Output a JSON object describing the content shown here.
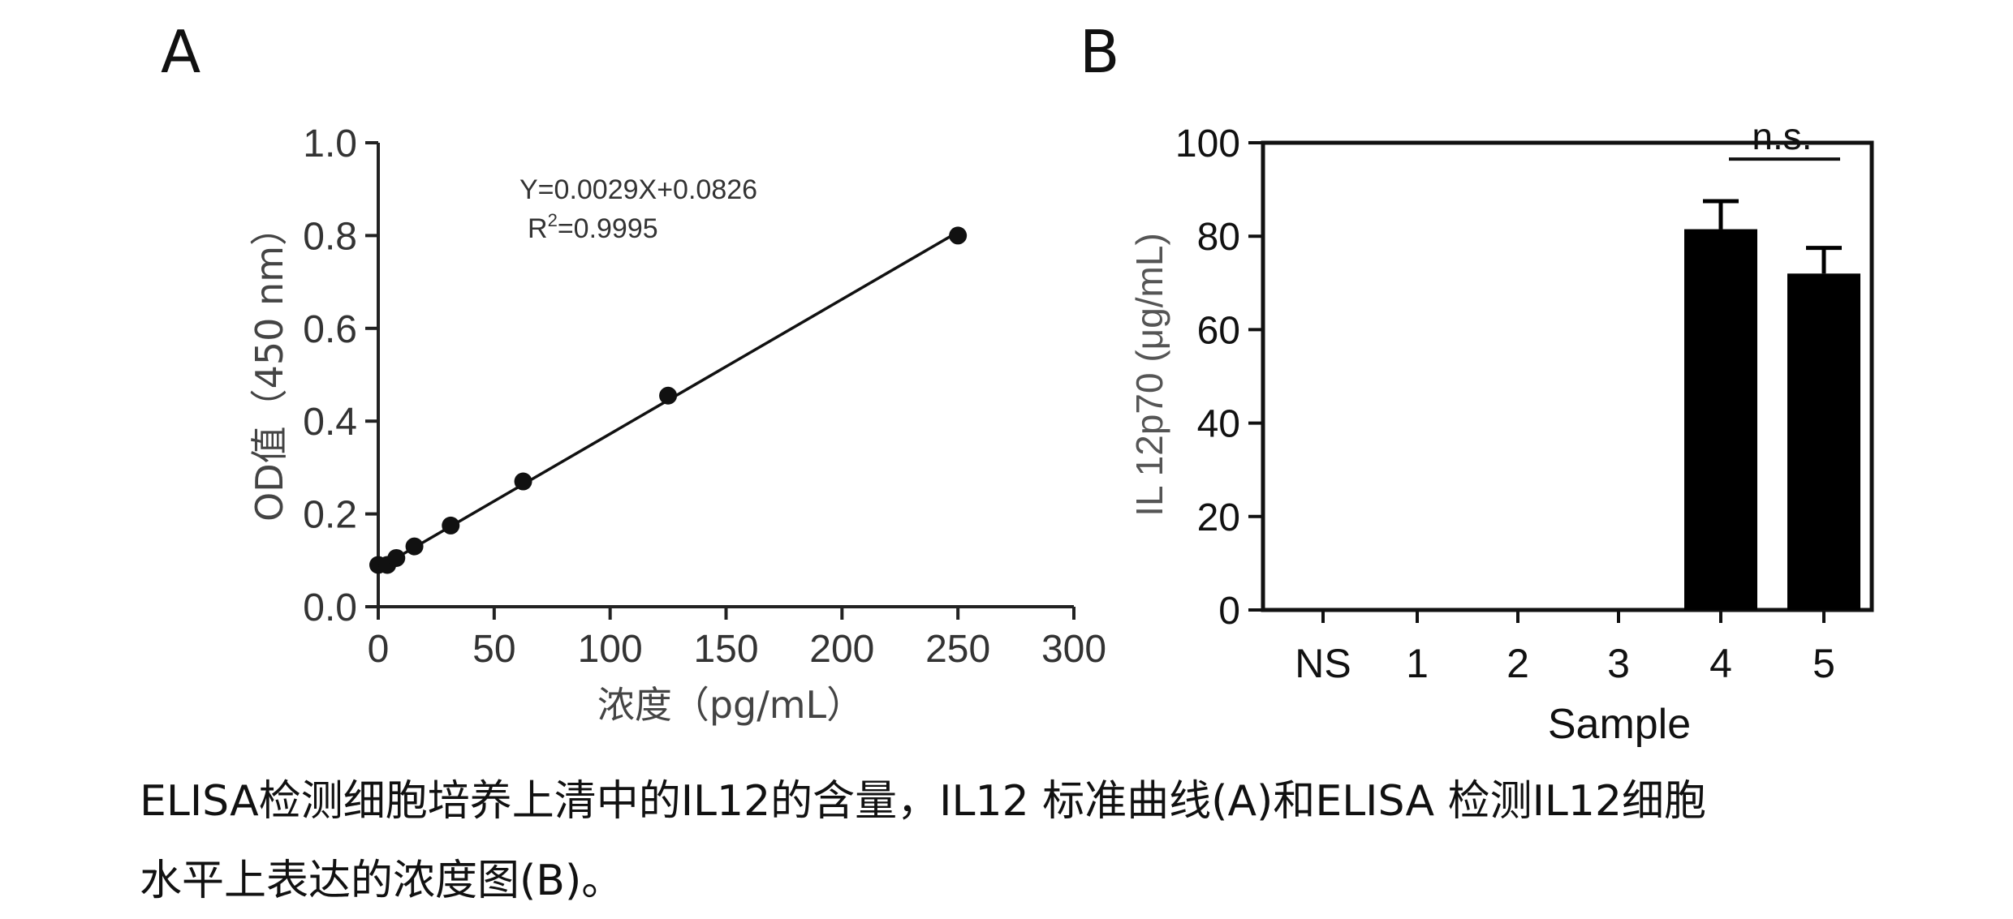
{
  "panels": {
    "a": {
      "letter": "A"
    },
    "b": {
      "letter": "B"
    }
  },
  "caption": {
    "line1": "ELISA检测细胞培养上清中的IL12的含量，IL12 标准曲线(A)和ELISA 检测IL12细胞",
    "line2": "水平上表达的浓度图(B)。"
  },
  "chart_data": [
    {
      "type": "scatter",
      "title": "",
      "xlabel": "浓度（pg/mL）",
      "ylabel": "OD值（450 nm）",
      "x": [
        0,
        3.9,
        7.8,
        15.6,
        31.25,
        62.5,
        125,
        250
      ],
      "y": [
        0.09,
        0.09,
        0.105,
        0.13,
        0.175,
        0.27,
        0.455,
        0.8
      ],
      "xlim": [
        0,
        300
      ],
      "ylim": [
        0,
        1.0
      ],
      "xticks": [
        0,
        50,
        100,
        150,
        200,
        250,
        300
      ],
      "yticks": [
        0.0,
        0.2,
        0.4,
        0.6,
        0.8,
        1.0
      ],
      "xtick_labels": [
        "0",
        "50",
        "100",
        "150",
        "200",
        "250",
        "300"
      ],
      "ytick_labels": [
        "0.0",
        "0.2",
        "0.4",
        "0.6",
        "0.8",
        "1.0"
      ],
      "fit_line": {
        "slope": 0.0029,
        "intercept": 0.0826,
        "x_range": [
          0,
          250
        ]
      },
      "annotations": [
        "Y=0.0029X+0.0826",
        "R",
        "2",
        "=0.9995"
      ],
      "grid": false,
      "colors": {
        "axis": "#222222",
        "text": "#333333",
        "marker": "#111111"
      }
    },
    {
      "type": "bar",
      "title": "",
      "xlabel": "Sample",
      "ylabel": "IL 12p70 (μg/mL)",
      "categories": [
        "NS",
        "1",
        "2",
        "3",
        "4",
        "5"
      ],
      "values": [
        0,
        0,
        0,
        0,
        81.5,
        72
      ],
      "errors": [
        0,
        0,
        0,
        0,
        6,
        5.5
      ],
      "ylim": [
        0,
        100
      ],
      "yticks": [
        0,
        20,
        40,
        60,
        80,
        100
      ],
      "ytick_labels": [
        "0",
        "20",
        "40",
        "60",
        "80",
        "100"
      ],
      "significance": {
        "label": "n.s.",
        "between": [
          "4",
          "5"
        ]
      },
      "grid": false,
      "colors": {
        "axis": "#111111",
        "bar": "#000000",
        "text": "#111111",
        "ylabel": "#555555"
      }
    }
  ]
}
